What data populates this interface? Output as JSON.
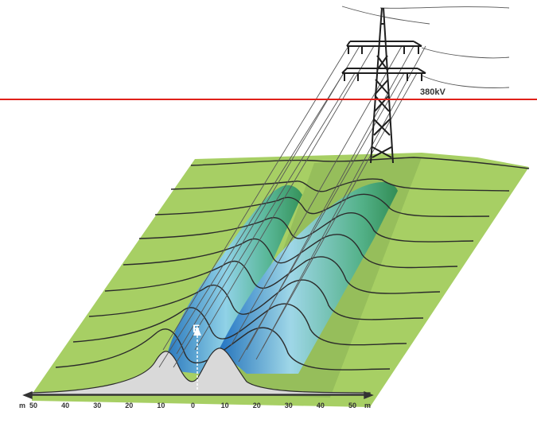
{
  "voltage_label": "380kV",
  "field_label": "E",
  "axis": {
    "unit": "m",
    "ticks": [
      "50",
      "40",
      "30",
      "20",
      "10",
      "0",
      "10",
      "20",
      "30",
      "40",
      "50"
    ]
  },
  "colors": {
    "terrain": "#a7cf64",
    "terrain_shadow": "#8cb055",
    "reference_line": "#e0201a",
    "cross_section": "#d9d9d9",
    "field_dark": "#1d6fc0",
    "field_light": "#9fd8ef",
    "field_green": "#3ea36f"
  }
}
